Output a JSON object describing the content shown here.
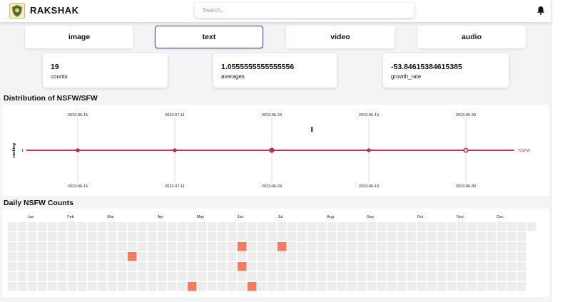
{
  "app": {
    "title": "RAKSHAK"
  },
  "header": {
    "search_placeholder": "Search..."
  },
  "icons": {
    "logo": "shield-emblem-icon",
    "notifications": "bell-icon"
  },
  "tabs": [
    {
      "label": "image",
      "active": false
    },
    {
      "label": "text",
      "active": true
    },
    {
      "label": "video",
      "active": false
    },
    {
      "label": "audio",
      "active": false
    }
  ],
  "stats": [
    {
      "value": "19",
      "label": "counts"
    },
    {
      "value": "1.0555555555555556",
      "label": "averages"
    },
    {
      "value": "-53.84615384615385",
      "label": "growth_rate"
    }
  ],
  "colors": {
    "accent": "#3a3fb0",
    "series_line": "#c8344a",
    "heat_fill": "#f47a60",
    "heat_empty": "#ededed",
    "outlier_bar": "#6a2fb8"
  },
  "distribution": {
    "title": "Distribution of NSFW/SFW",
    "chart_data": {
      "type": "line",
      "x": [
        "2023-06-15",
        "2023-07-11",
        "2023-06-24",
        "2023-06-13",
        "2023-06-30"
      ],
      "series": [
        {
          "name": "NSFW",
          "values": [
            1,
            1,
            1,
            1,
            1
          ]
        }
      ],
      "ylabel": "ranking",
      "y_tick": "1",
      "grid": true,
      "legend": "right"
    }
  },
  "heatmap": {
    "title": "Daily NSFW Counts",
    "chart_data": {
      "type": "heatmap",
      "months": [
        "Jan",
        "Feb",
        "Mar",
        "Apr",
        "May",
        "Jun",
        "Jul",
        "Aug",
        "Sep",
        "Oct",
        "Nov",
        "Dec"
      ],
      "weeks": 53,
      "days_per_week": 7,
      "filled_cells": [
        {
          "week": 12,
          "day": 3,
          "value": 1
        },
        {
          "week": 18,
          "day": 6,
          "value": 1
        },
        {
          "week": 23,
          "day": 2,
          "value": 1
        },
        {
          "week": 23,
          "day": 4,
          "value": 1
        },
        {
          "week": 24,
          "day": 6,
          "value": 1
        },
        {
          "week": 27,
          "day": 2,
          "value": 1
        }
      ]
    }
  }
}
